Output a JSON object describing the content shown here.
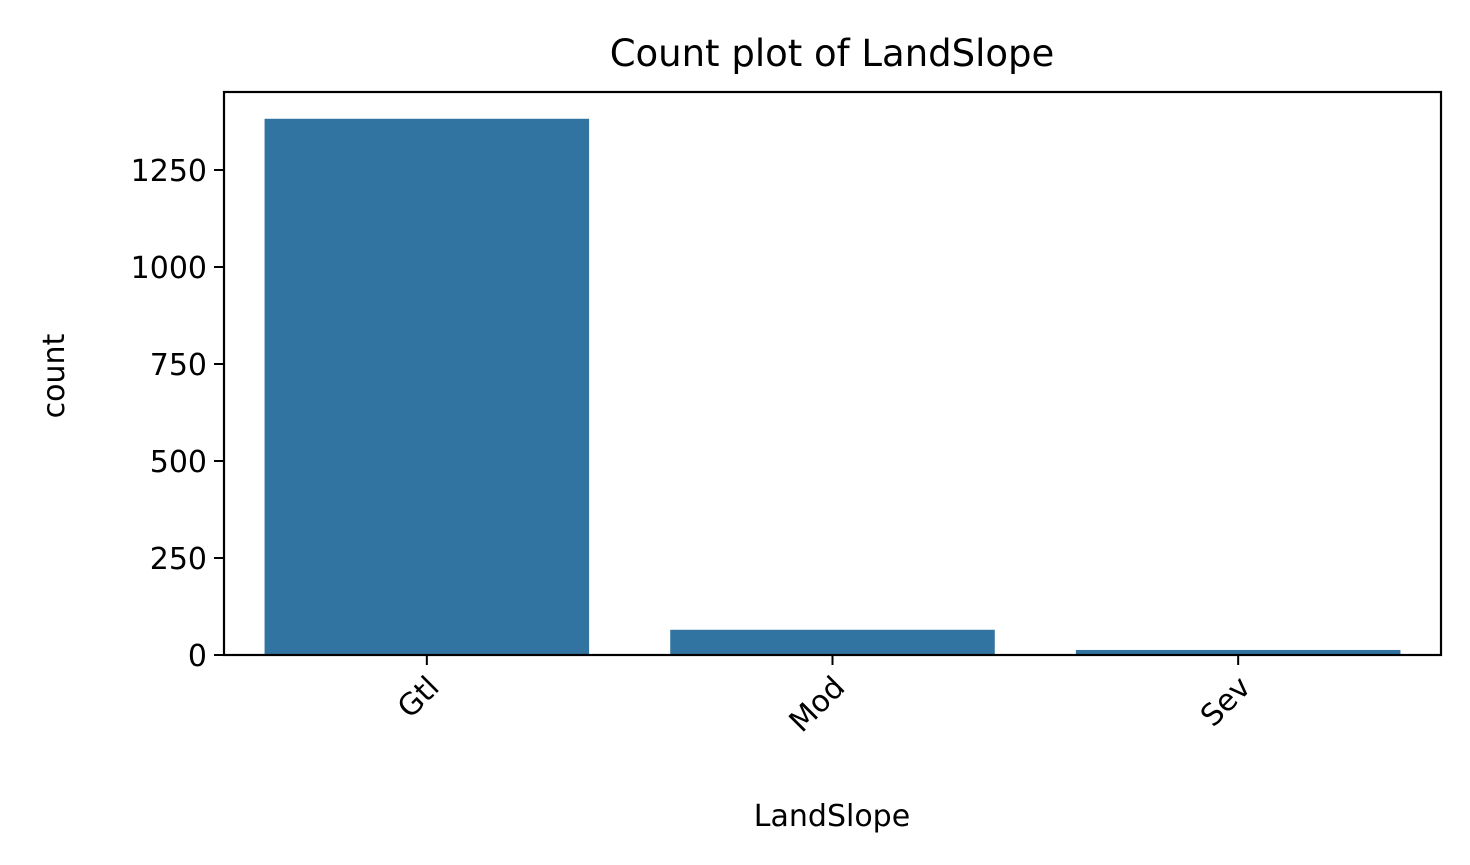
{
  "chart_data": {
    "type": "bar",
    "title": "Count plot of LandSlope",
    "xlabel": "LandSlope",
    "ylabel": "count",
    "categories": [
      "Gtl",
      "Mod",
      "Sev"
    ],
    "values": [
      1382,
      65,
      13
    ],
    "ylim": [
      0,
      1451
    ],
    "yticks": [
      0,
      250,
      500,
      750,
      1000,
      1250
    ],
    "ytick_labels": [
      "0",
      "250",
      "500",
      "750",
      "1000",
      "1250"
    ],
    "grid": false,
    "legend": "none",
    "colors": {
      "bar": "#3274a1",
      "axes": "#000000"
    }
  }
}
